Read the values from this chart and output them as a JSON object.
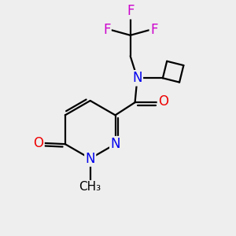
{
  "bg_color": "#eeeeee",
  "atom_colors": {
    "N": "#0000ee",
    "O": "#ee0000",
    "F": "#cc00cc"
  },
  "bond_color": "#000000",
  "bond_width": 1.6,
  "font_size": 12
}
